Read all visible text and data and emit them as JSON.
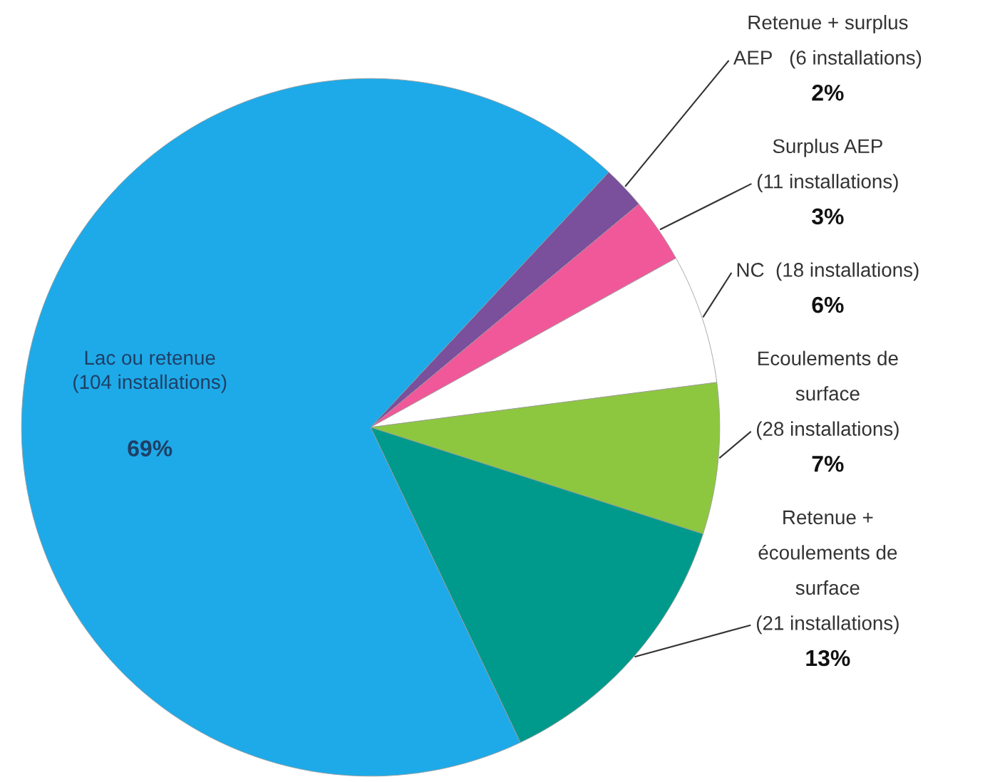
{
  "chart_data": {
    "type": "pie",
    "categories": [
      "Retenue + surplus AEP   (6 installations)",
      "Surplus AEP (11 installations)",
      "NC  (18 installations)",
      "Ecoulements de surface (28 installations)",
      "Retenue + écoulements de surface (21 installations)",
      "Lac ou retenue (104 installations)"
    ],
    "values": [
      2,
      3,
      6,
      7,
      13,
      69
    ],
    "colors": [
      "#7a4f9c",
      "#f0589a",
      "#ffffff",
      "#8dc73f",
      "#009a8c",
      "#1eaae8"
    ],
    "value_labels": [
      "2%",
      "3%",
      "6%",
      "7%",
      "13%",
      "69%"
    ]
  }
}
